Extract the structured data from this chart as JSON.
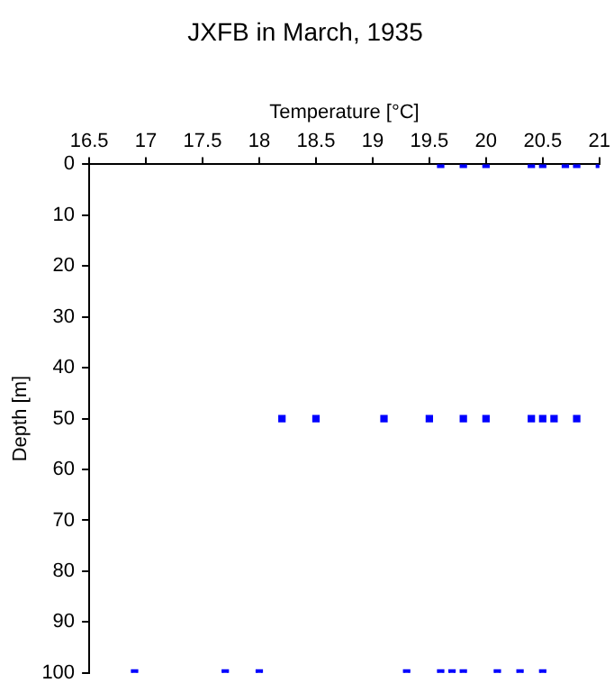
{
  "chart_data": {
    "type": "scatter",
    "title": "JXFB in March, 1935",
    "xlabel": "Temperature [°C]",
    "ylabel": "Depth [m]",
    "xlim": [
      16.5,
      21
    ],
    "xticks": [
      16.5,
      17,
      17.5,
      18,
      18.5,
      19,
      19.5,
      20,
      20.5,
      21
    ],
    "ylim": [
      100,
      0
    ],
    "yticks": [
      0,
      10,
      20,
      30,
      40,
      50,
      60,
      70,
      80,
      90,
      100
    ],
    "series": [
      {
        "color": "#0000ff",
        "x": [
          19.6,
          19.8,
          20.0,
          20.4,
          20.5,
          20.7,
          20.8,
          21.0,
          18.2,
          18.5,
          19.1,
          19.5,
          19.8,
          20.0,
          20.4,
          20.5,
          20.6,
          20.8,
          16.9,
          17.7,
          18.0,
          19.3,
          19.6,
          19.7,
          19.8,
          20.1,
          20.3,
          20.5
        ],
        "values": [
          0,
          0,
          0,
          0,
          0,
          0,
          0,
          0,
          50,
          50,
          50,
          50,
          50,
          50,
          50,
          50,
          50,
          50,
          100,
          100,
          100,
          100,
          100,
          100,
          100,
          100,
          100,
          100
        ]
      }
    ],
    "grid": false,
    "legend": false,
    "marker": "square"
  }
}
